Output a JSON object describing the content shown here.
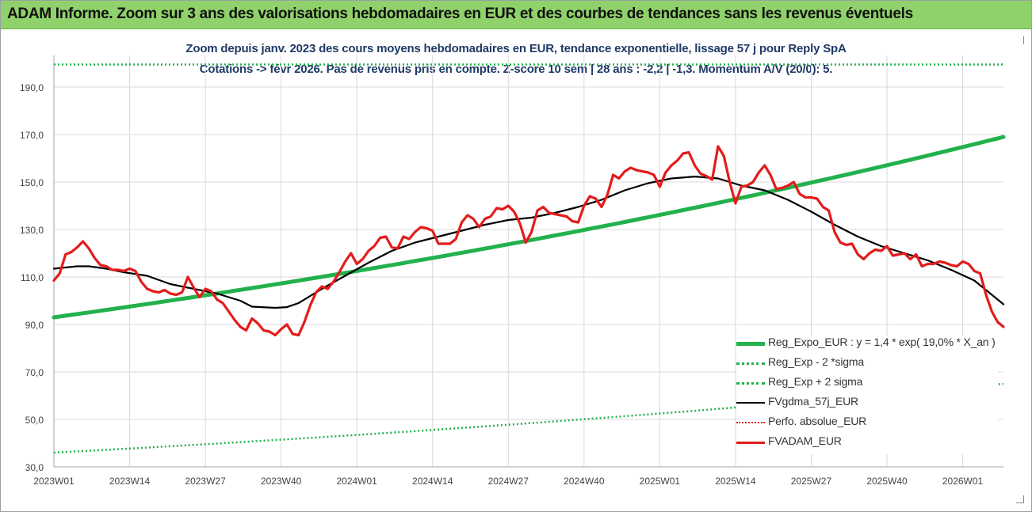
{
  "header": {
    "title": "ADAM Informe. Zoom sur 3 ans des valorisations hebdomadaires en EUR et des courbes de tendances sans les revenus éventuels"
  },
  "chart_data": {
    "type": "line",
    "title_line1": "Zoom depuis janv. 2023 des cours moyens hebdomadaires en EUR, tendance exponentielle, lissage 57 j pour Reply SpA",
    "title_line2": "Cotations -> févr 2026.  Pas de revenus pris en compte. Z-score 10 sem | 28 ans : -2,2 | -1,3. Momentum A/V (20/0): 5.",
    "ylim": [
      30,
      200
    ],
    "yticks": [
      "30,0",
      "50,0",
      "70,0",
      "90,0",
      "110,0",
      "130,0",
      "150,0",
      "170,0",
      "190,0"
    ],
    "ytick_values": [
      30,
      50,
      70,
      90,
      110,
      130,
      150,
      170,
      190
    ],
    "x_tick_labels": [
      "2023W01",
      "2023W14",
      "2023W27",
      "2023W40",
      "2024W01",
      "2024W14",
      "2024W27",
      "2024W40",
      "2025W01",
      "2025W14",
      "2025W27",
      "2025W40",
      "2026W01"
    ],
    "x_tick_weeks": [
      0,
      13,
      26,
      39,
      52,
      65,
      78,
      91,
      104,
      117,
      130,
      143,
      156
    ],
    "x_range_weeks": [
      0,
      163
    ],
    "legend_position": "bottom-right",
    "series": [
      {
        "name": "Reg_Expo_EUR : y = 1,4 * exp( 19,0% *  X_an )",
        "color": "#22b14c",
        "style": "solid",
        "width": 5,
        "x": [
          0,
          163
        ],
        "values": [
          93.0,
          169.0
        ],
        "curve": "exponential"
      },
      {
        "name": "Reg_Exp - 2 *sigma",
        "color": "#22b14c",
        "style": "dotted",
        "width": 2.5,
        "x": [
          0,
          163
        ],
        "values": [
          36.0,
          65.0
        ],
        "curve": "exponential"
      },
      {
        "name": "Reg_Exp + 2 sigma",
        "color": "#22b14c",
        "style": "dotted",
        "width": 2.5,
        "x": [
          0,
          163
        ],
        "values": [
          199.5,
          199.5
        ],
        "curve": "linear"
      },
      {
        "name": "FVgdma_57j_EUR",
        "color": "#000000",
        "style": "solid",
        "width": 2.2,
        "x": [
          0,
          4,
          6,
          9,
          12,
          16,
          20,
          24,
          28,
          32,
          34,
          38,
          40,
          42,
          46,
          50,
          54,
          58,
          62,
          66,
          70,
          74,
          78,
          82,
          86,
          90,
          94,
          98,
          102,
          106,
          110,
          114,
          118,
          122,
          126,
          130,
          134,
          138,
          142,
          146,
          150,
          154,
          158,
          163
        ],
        "values": [
          113.5,
          114.5,
          114.5,
          113.5,
          112.0,
          110.5,
          107.0,
          105.0,
          103.0,
          100.0,
          97.5,
          97.0,
          97.3,
          99.0,
          105.0,
          110.5,
          116.0,
          121.0,
          124.5,
          127.0,
          129.5,
          132.0,
          134.0,
          135.0,
          137.0,
          139.5,
          142.5,
          146.5,
          149.5,
          151.5,
          152.3,
          151.5,
          148.5,
          146.5,
          142.5,
          137.5,
          132.0,
          127.0,
          123.0,
          120.0,
          117.0,
          113.0,
          108.5,
          98.5
        ]
      },
      {
        "name": "Perfo. absolue_EUR",
        "color": "#e02020",
        "style": "dotted",
        "width": 2,
        "x": [],
        "values": []
      },
      {
        "name": "FVADAM_EUR",
        "color": "#e31c1c",
        "style": "solid",
        "width": 3.2,
        "x": [
          0,
          1,
          2,
          3,
          4,
          5,
          6,
          7,
          8,
          9,
          10,
          11,
          12,
          13,
          14,
          15,
          16,
          17,
          18,
          19,
          20,
          21,
          22,
          23,
          24,
          25,
          26,
          27,
          28,
          29,
          30,
          31,
          32,
          33,
          34,
          35,
          36,
          37,
          38,
          39,
          40,
          41,
          42,
          43,
          44,
          45,
          46,
          47,
          48,
          49,
          50,
          51,
          52,
          53,
          54,
          55,
          56,
          57,
          58,
          59,
          60,
          61,
          62,
          63,
          64,
          65,
          66,
          67,
          68,
          69,
          70,
          71,
          72,
          73,
          74,
          75,
          76,
          77,
          78,
          79,
          80,
          81,
          82,
          83,
          84,
          85,
          86,
          87,
          88,
          89,
          90,
          91,
          92,
          93,
          94,
          95,
          96,
          97,
          98,
          99,
          100,
          101,
          102,
          103,
          104,
          105,
          106,
          107,
          108,
          109,
          110,
          111,
          112,
          113,
          114,
          115,
          116,
          117,
          118,
          119,
          120,
          121,
          122,
          123,
          124,
          125,
          126,
          127,
          128,
          129,
          130,
          131,
          132,
          133,
          134,
          135,
          136,
          137,
          138,
          139,
          140,
          141,
          142,
          143,
          144,
          145,
          146,
          147,
          148,
          149,
          150,
          151,
          152,
          153,
          154,
          155,
          156,
          157,
          158,
          159,
          160,
          161,
          162,
          163
        ],
        "values": [
          108.5,
          111.5,
          119.5,
          120.5,
          122.5,
          125.0,
          122.0,
          118.0,
          115.0,
          114.5,
          113.0,
          113.0,
          112.5,
          113.5,
          112.5,
          108.0,
          105.0,
          104.0,
          103.5,
          104.5,
          103.0,
          102.5,
          103.5,
          110.0,
          105.5,
          101.5,
          105.0,
          104.0,
          100.5,
          99.0,
          95.5,
          92.0,
          89.0,
          87.5,
          92.5,
          90.5,
          87.5,
          87.0,
          85.5,
          88.0,
          90.0,
          86.0,
          85.5,
          91.0,
          98.0,
          103.5,
          106.0,
          105.0,
          108.0,
          112.0,
          116.5,
          120.0,
          115.5,
          117.5,
          121.0,
          123.0,
          126.5,
          127.0,
          122.5,
          122.0,
          127.0,
          126.0,
          129.0,
          131.0,
          130.5,
          129.5,
          124.0,
          124.0,
          124.0,
          126.0,
          133.0,
          136.0,
          134.5,
          131.0,
          134.5,
          135.5,
          139.0,
          138.5,
          140.0,
          137.5,
          132.5,
          124.5,
          129.0,
          138.0,
          139.5,
          137.0,
          136.5,
          136.0,
          135.5,
          133.5,
          133.0,
          140.0,
          144.0,
          143.0,
          139.5,
          144.5,
          153.0,
          151.5,
          154.5,
          156.0,
          155.0,
          154.5,
          154.0,
          153.0,
          148.0,
          154.0,
          157.0,
          159.0,
          162.0,
          162.5,
          157.0,
          153.5,
          152.5,
          151.0,
          165.0,
          161.0,
          150.0,
          141.0,
          148.0,
          148.5,
          150.0,
          154.0,
          157.0,
          153.0,
          147.0,
          147.5,
          148.5,
          150.0,
          145.0,
          143.5,
          143.5,
          143.0,
          139.5,
          138.0,
          129.0,
          124.5,
          123.5,
          124.0,
          119.5,
          117.5,
          120.0,
          121.5,
          121.0,
          123.0,
          119.0,
          119.5,
          120.0,
          117.5,
          119.5,
          114.5,
          115.5,
          115.5,
          116.5,
          116.0,
          115.0,
          114.5,
          116.5,
          115.5,
          112.5,
          111.5,
          102.5,
          95.5,
          91.0,
          89.0
        ]
      }
    ]
  }
}
